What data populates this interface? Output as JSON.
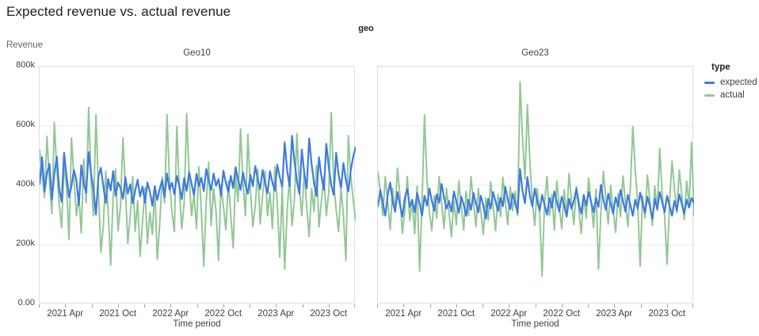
{
  "page": {
    "title": "Expected revenue vs. actual revenue"
  },
  "facet_header": "geo",
  "y_axis": {
    "label": "Revenue",
    "ticks": [
      "800k",
      "600k",
      "400k",
      "200k",
      "0.00"
    ]
  },
  "x_axis": {
    "label": "Time period",
    "months_total": 36,
    "ticks": [
      {
        "m": 0
      },
      {
        "m": 3,
        "label": "2021 Apr"
      },
      {
        "m": 6
      },
      {
        "m": 9,
        "label": "2021 Oct"
      },
      {
        "m": 12
      },
      {
        "m": 15,
        "label": "2022 Apr"
      },
      {
        "m": 18
      },
      {
        "m": 21,
        "label": "2022 Oct"
      },
      {
        "m": 24
      },
      {
        "m": 27,
        "label": "2023 Apr"
      },
      {
        "m": 30
      },
      {
        "m": 33,
        "label": "2023 Oct"
      },
      {
        "m": 36
      }
    ]
  },
  "legend": {
    "title": "type",
    "items": [
      {
        "label": "expected",
        "color": "#3c7be0"
      },
      {
        "label": "actual",
        "color": "#93c795"
      }
    ]
  },
  "chart_data": {
    "type": "line",
    "title": "Expected revenue vs. actual revenue",
    "xlabel": "Time period",
    "ylabel": "Revenue",
    "ylim": [
      0,
      800000
    ],
    "unit": "thousands (values_k are k of revenue)",
    "x_domain": [
      "2021 Jan",
      "2023 Dec"
    ],
    "x_tick_labels": [
      "2021 Apr",
      "2021 Oct",
      "2022 Apr",
      "2022 Oct",
      "2023 Apr",
      "2023 Oct"
    ],
    "legend_position": "top-right",
    "grid": "horizontal at 200k, 400k, 600k",
    "facets": [
      {
        "title": "Geo10",
        "series": [
          {
            "name": "expected",
            "color": "#3c7be0",
            "values_k": [
              405,
              495,
              380,
              441,
              472,
              353,
              438,
              497,
              389,
              345,
              510,
              433,
              361,
              398,
              452,
              419,
              334,
              468,
              405,
              376,
              512,
              440,
              387,
              302,
              430,
              459,
              398,
              341,
              422,
              383,
              448,
              365,
              410,
              391,
              355,
              428,
              372,
              404,
              340,
              382,
              419,
              363,
              396,
              342,
              410,
              378,
              332,
              398,
              351,
              389,
              417,
              361,
              440,
              386,
              409,
              370,
              432,
              399,
              354,
              425,
              382,
              445,
              405,
              367,
              439,
              398,
              426,
              381,
              455,
              417,
              384,
              440,
              399,
              421,
              365,
              450,
              409,
              378,
              432,
              391,
              461,
              419,
              385,
              444,
              402,
              372,
              436,
              398,
              465,
              420,
              388,
              452,
              407,
              374,
              448,
              410,
              382,
              470,
              428,
              395,
              545,
              452,
              398,
              567,
              480,
              415,
              372,
              521,
              443,
              390,
              558,
              472,
              408,
              365,
              495,
              430,
              385,
              540,
              460,
              402,
              368,
              510,
              438,
              392,
              475,
              418,
              380,
              452,
              498,
              528
            ]
          },
          {
            "name": "actual",
            "color": "#93c795",
            "values_k": [
              520,
              438,
              360,
              565,
              415,
              305,
              612,
              452,
              338,
              258,
              475,
              390,
              218,
              560,
              430,
              298,
              365,
              240,
              488,
              342,
              663,
              415,
              298,
              638,
              390,
              175,
              262,
              448,
              310,
              132,
              365,
              455,
              248,
              330,
              560,
              390,
              205,
              298,
              430,
              245,
              348,
              162,
              278,
              392,
              205,
              310,
              235,
              395,
              152,
              270,
              428,
              340,
              638,
              420,
              310,
              245,
              598,
              390,
              255,
              340,
              642,
              430,
              298,
              370,
              255,
              462,
              318,
              128,
              345,
              478,
              265,
              390,
              312,
              148,
              402,
              330,
              250,
              415,
              298,
              190,
              438,
              345,
              590,
              410,
              298,
              572,
              390,
              262,
              330,
              455,
              270,
              368,
              448,
              298,
              378,
              255,
              462,
              340,
              158,
              390,
              118,
              312,
              428,
              265,
              355,
              575,
              390,
              298,
              448,
              330,
              228,
              390,
              312,
              468,
              260,
              348,
              430,
              298,
              378,
              645,
              412,
              318,
              245,
              390,
              298,
              148,
              568,
              430,
              348,
              282
            ]
          }
        ]
      },
      {
        "title": "Geo23",
        "series": [
          {
            "name": "expected",
            "color": "#3c7be0",
            "values_k": [
              330,
              385,
              342,
              298,
              368,
              410,
              345,
              312,
              378,
              335,
              295,
              360,
              388,
              328,
              352,
              310,
              375,
              340,
              298,
              365,
              332,
              390,
              348,
              315,
              370,
              342,
              405,
              358,
              322,
              348,
              312,
              380,
              345,
              308,
              362,
              335,
              298,
              352,
              318,
              375,
              340,
              310,
              365,
              332,
              288,
              355,
              322,
              378,
              345,
              315,
              358,
              330,
              395,
              352,
              320,
              372,
              340,
              308,
              455,
              382,
              340,
              428,
              365,
              330,
              390,
              348,
              315,
              368,
              335,
              302,
              358,
              325,
              380,
              345,
              312,
              362,
              332,
              295,
              355,
              322,
              348,
              390,
              340,
              305,
              368,
              332,
              378,
              345,
              310,
              358,
              328,
              402,
              352,
              318,
              372,
              338,
              305,
              360,
              330,
              385,
              348,
              312,
              368,
              335,
              298,
              352,
              322,
              376,
              340,
              308,
              362,
              330,
              288,
              355,
              320,
              378,
              342,
              310,
              365,
              332,
              298,
              348,
              315,
              370,
              338,
              305,
              352,
              325,
              358,
              340
            ]
          },
          {
            "name": "actual",
            "color": "#93c795",
            "values_k": [
              445,
              380,
              298,
              430,
              340,
              252,
              390,
              310,
              458,
              365,
              240,
              315,
              430,
              282,
              348,
              238,
              398,
              112,
              340,
              638,
              420,
              310,
              248,
              365,
              290,
              430,
              340,
              255,
              390,
              310,
              228,
              348,
              268,
              415,
              330,
              250,
              380,
              298,
              430,
              345,
              262,
              390,
              312,
              235,
              358,
              282,
              412,
              330,
              248,
              370,
              295,
              428,
              348,
              268,
              395,
              315,
              380,
              298,
              748,
              560,
              420,
              672,
              480,
              345,
              265,
              390,
              310,
              95,
              340,
              430,
              298,
              370,
              250,
              415,
              330,
              255,
              385,
              302,
              440,
              348,
              268,
              395,
              315,
              238,
              365,
              290,
              425,
              340,
              258,
              388,
              118,
              312,
              448,
              355,
              270,
              400,
              318,
              242,
              372,
              295,
              432,
              345,
              262,
              392,
              598,
              452,
              340,
              128,
              365,
              290,
              435,
              348,
              265,
              398,
              315,
              525,
              372,
              295,
              135,
              345,
              482,
              390,
              308,
              452,
              368,
              285,
              415,
              330,
              545,
              298
            ]
          }
        ]
      }
    ]
  }
}
